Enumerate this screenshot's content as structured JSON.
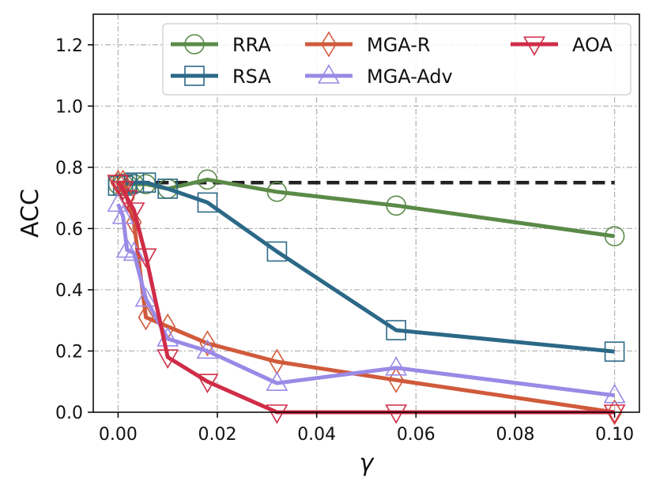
{
  "chart_data": {
    "type": "line",
    "xlabel": "γ",
    "ylabel": "ACC",
    "xlim": [
      -0.005,
      0.105
    ],
    "ylim": [
      0.0,
      1.3
    ],
    "xticks": [
      0.0,
      0.02,
      0.04,
      0.06,
      0.08,
      0.1
    ],
    "xtick_labels": [
      "0.00",
      "0.02",
      "0.04",
      "0.06",
      "0.08",
      "0.10"
    ],
    "yticks": [
      0.0,
      0.2,
      0.4,
      0.6,
      0.8,
      1.0,
      1.2
    ],
    "ytick_labels": [
      "0.0",
      "0.2",
      "0.4",
      "0.6",
      "0.8",
      "1.0",
      "1.2"
    ],
    "grid": true,
    "legend_placement": "top-right",
    "baseline": {
      "y": 0.75,
      "x_range": [
        0.0,
        0.1
      ],
      "style": "dashed",
      "color": "#222222"
    },
    "series": [
      {
        "name": "RRA",
        "marker": "circle",
        "color": "#5b8a48",
        "x": [
          0.0,
          0.001,
          0.0018,
          0.0032,
          0.0056,
          0.01,
          0.018,
          0.032,
          0.056,
          0.1
        ],
        "y": [
          0.745,
          0.745,
          0.745,
          0.745,
          0.745,
          0.73,
          0.76,
          0.72,
          0.675,
          0.575
        ]
      },
      {
        "name": "RSA",
        "marker": "square",
        "color": "#2c6887",
        "x": [
          0.0,
          0.001,
          0.0018,
          0.0032,
          0.0056,
          0.01,
          0.018,
          0.032,
          0.056,
          0.1
        ],
        "y": [
          0.74,
          0.74,
          0.745,
          0.75,
          0.75,
          0.73,
          0.685,
          0.525,
          0.268,
          0.198
        ]
      },
      {
        "name": "MGA-R",
        "marker": "diamond",
        "color": "#d05a3b",
        "x": [
          0.0,
          0.001,
          0.0018,
          0.0032,
          0.0056,
          0.01,
          0.018,
          0.032,
          0.056,
          0.1
        ],
        "y": [
          0.75,
          0.75,
          0.7,
          0.62,
          0.31,
          0.28,
          0.225,
          0.165,
          0.105,
          0.0
        ]
      },
      {
        "name": "MGA-Adv",
        "marker": "triangle-up",
        "color": "#9a8ae6",
        "x": [
          0.0,
          0.001,
          0.0018,
          0.0032,
          0.0056,
          0.01,
          0.018,
          0.032,
          0.056,
          0.1
        ],
        "y": [
          0.68,
          0.64,
          0.53,
          0.52,
          0.37,
          0.24,
          0.2,
          0.095,
          0.145,
          0.055
        ]
      },
      {
        "name": "AOA",
        "marker": "triangle-down",
        "color": "#d02c48",
        "x": [
          0.0,
          0.001,
          0.0018,
          0.0032,
          0.0056,
          0.01,
          0.018,
          0.032,
          0.056,
          0.1
        ],
        "y": [
          0.75,
          0.73,
          0.7,
          0.66,
          0.51,
          0.18,
          0.1,
          0.0,
          0.0,
          0.0
        ]
      }
    ]
  }
}
